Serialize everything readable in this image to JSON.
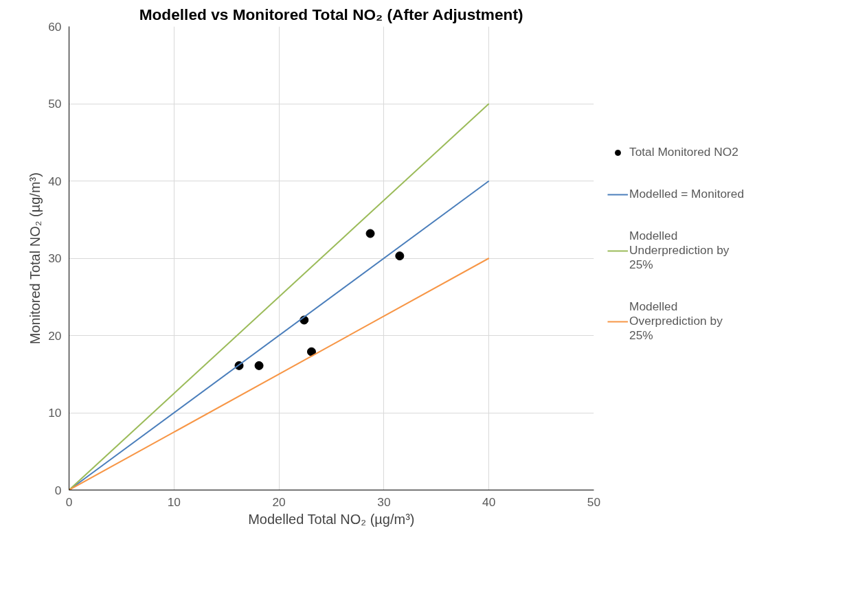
{
  "chart_data": {
    "type": "scatter",
    "title": "Modelled vs Monitored Total NO₂ (After Adjustment)",
    "xlabel": "Modelled Total NO₂ (µg/m³)",
    "ylabel": "Monitored Total NO₂ (µg/m³)",
    "xlim": [
      0,
      50
    ],
    "ylim": [
      0,
      60
    ],
    "xticks": [
      0,
      10,
      20,
      30,
      40,
      50
    ],
    "yticks": [
      0,
      10,
      20,
      30,
      40,
      50,
      60
    ],
    "grid": true,
    "legend": "right",
    "series": [
      {
        "name": "Total Monitored NO2",
        "color": "#000000",
        "marker": "circle",
        "x": [
          16.2,
          18.1,
          22.4,
          23.1,
          28.7,
          31.5
        ],
        "values": [
          16.1,
          16.1,
          22.0,
          17.9,
          33.2,
          30.3
        ]
      },
      {
        "name": "Modelled = Monitored",
        "type": "line",
        "marker": "none",
        "color": "#4a7ebb",
        "x": [
          0,
          40
        ],
        "values": [
          0,
          40
        ]
      },
      {
        "name": "Modelled Underprediction by 25%",
        "type": "line",
        "marker": "none",
        "color": "#9bbb59",
        "x": [
          0,
          40
        ],
        "values": [
          0,
          50
        ]
      },
      {
        "name": "Modelled Overprediction by 25%",
        "type": "line",
        "marker": "none",
        "color": "#f79646",
        "x": [
          0,
          40
        ],
        "values": [
          0,
          30
        ]
      }
    ]
  }
}
